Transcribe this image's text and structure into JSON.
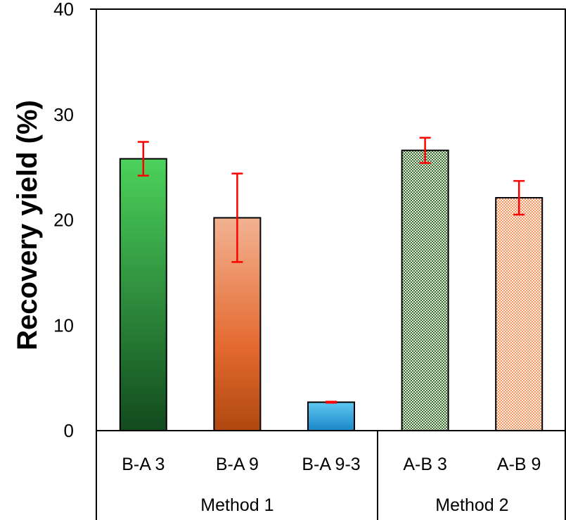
{
  "chart_data": {
    "type": "bar",
    "title": "",
    "xlabel": "",
    "ylabel": "Recovery yield (%)",
    "ylim": [
      0,
      40
    ],
    "yticks": [
      0,
      10,
      20,
      30,
      40
    ],
    "grid": false,
    "categories": [
      "B-A 3",
      "B-A 9",
      "B-A 9-3",
      "A-B 3",
      "A-B 9"
    ],
    "values": [
      25.8,
      20.2,
      2.7,
      26.6,
      22.1
    ],
    "errors": [
      1.6,
      4.2,
      0.05,
      1.2,
      1.6
    ],
    "groups": [
      {
        "label": "Method 1",
        "categories": [
          "B-A 3",
          "B-A 9",
          "B-A 9-3"
        ]
      },
      {
        "label": "Method 2",
        "categories": [
          "A-B 3",
          "A-B 9"
        ]
      }
    ],
    "colors": {
      "bar_fills": [
        "gradient-green",
        "gradient-orange",
        "gradient-blue",
        "pattern-green",
        "pattern-orange"
      ],
      "error_bar": "#ff0000",
      "axis": "#000000"
    }
  }
}
